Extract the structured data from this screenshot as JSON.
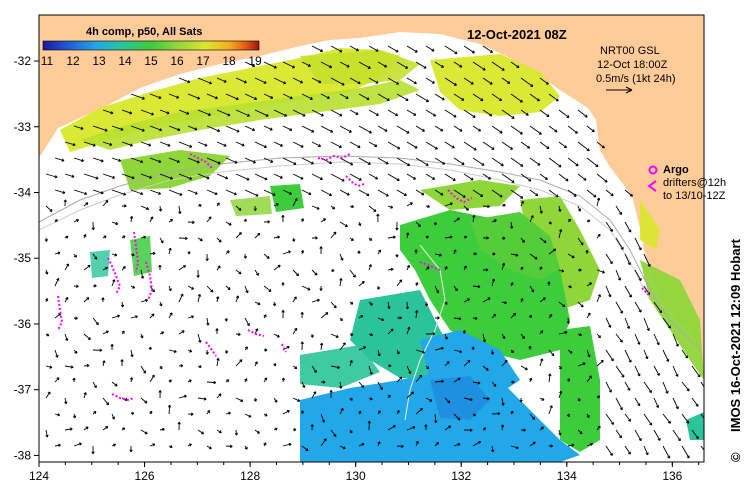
{
  "title": "12-Oct-2021 08Z",
  "colorbar": {
    "label": "4h comp, p50, All Sats",
    "ticks": [
      "11",
      "12",
      "13",
      "14",
      "15",
      "16",
      "17",
      "18",
      "19"
    ],
    "colors": [
      "#1a1a9a",
      "#1f5fd6",
      "#22a8e8",
      "#2bc49a",
      "#3ccc3c",
      "#8fd63a",
      "#d8e82a",
      "#f2b020",
      "#e05a14",
      "#a01010"
    ]
  },
  "current_legend": {
    "line1": "NRT00 GSL",
    "line2": "12-Oct 18:00Z",
    "line3": "0.5m/s (1kt 24h)"
  },
  "argo_legend": {
    "argo_label": "Argo",
    "drifters_line1": "drifters@12h",
    "drifters_line2": "to 13/10-12Z"
  },
  "credit": "IMOS 16-Oct-2021 12:09 Hobart",
  "copyright_symbol": "©",
  "axes": {
    "x_ticks": [
      "124",
      "126",
      "128",
      "130",
      "132",
      "134",
      "136"
    ],
    "y_ticks": [
      "-32",
      "-33",
      "-34",
      "-35",
      "-36",
      "-37",
      "-38"
    ],
    "x_range": [
      124,
      136.6
    ],
    "y_range": [
      -38.1,
      -31.3
    ]
  },
  "colors": {
    "land": "#ffcc99",
    "ocean": "#ffffff",
    "argo": "#ff00ff",
    "arrow": "#000000"
  }
}
